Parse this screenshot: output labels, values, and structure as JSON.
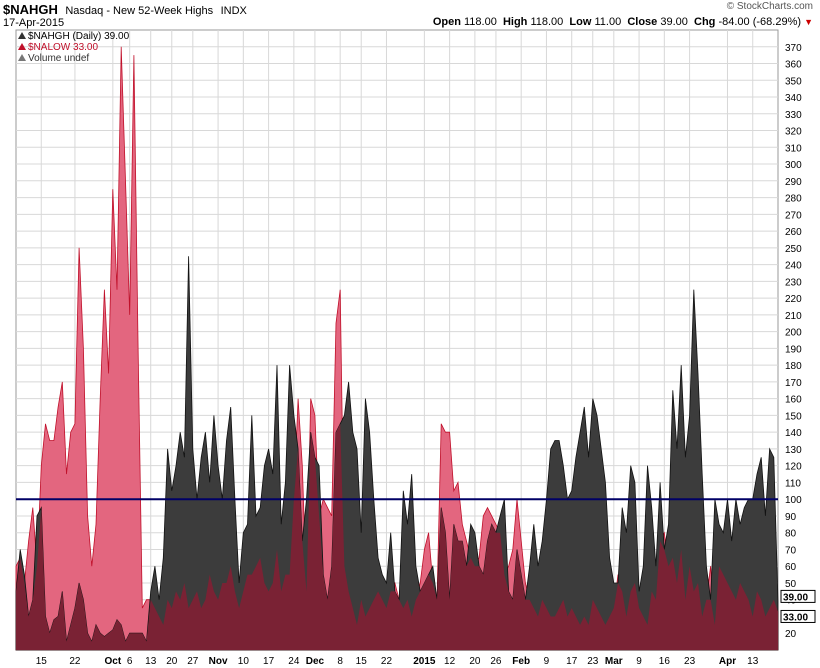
{
  "header": {
    "symbol": "$NAHGH",
    "name": "Nasdaq - New 52-Week Highs",
    "exchange": "INDX",
    "date": "17-Apr-2015",
    "brand": "© StockCharts.com",
    "open_label": "Open",
    "open": "118.00",
    "high_label": "High",
    "high": "118.00",
    "low_label": "Low",
    "low": "11.00",
    "close_label": "Close",
    "close": "39.00",
    "chg_label": "Chg",
    "chg": "-84.00 (-68.29%)"
  },
  "legend": {
    "items": [
      {
        "label": "$NAHGH (Daily) 39.00",
        "color": "#333333"
      },
      {
        "label": "$NALOW 33.00",
        "color": "#c0102a"
      },
      {
        "label": "Volume undef",
        "color": "#777777"
      }
    ]
  },
  "colors": {
    "highs_fill": "#3c3c3c",
    "lows_fill": "#e3667f",
    "overlap_fill": "#7a2234",
    "grid": "#d8d8d8",
    "reference_line": "#000066"
  },
  "chart_data": {
    "type": "area",
    "series": [
      {
        "name": "$NAHGH",
        "last_value": 39.0,
        "values": [
          45,
          70,
          55,
          30,
          40,
          90,
          95,
          30,
          20,
          28,
          30,
          45,
          15,
          25,
          35,
          50,
          40,
          20,
          15,
          25,
          20,
          18,
          20,
          22,
          28,
          25,
          15,
          20,
          20,
          20,
          20,
          15,
          45,
          60,
          40,
          65,
          130,
          105,
          120,
          140,
          125,
          245,
          130,
          100,
          125,
          140,
          110,
          150,
          120,
          100,
          135,
          155,
          100,
          50,
          80,
          85,
          150,
          90,
          95,
          120,
          130,
          115,
          180,
          85,
          110,
          180,
          150,
          130,
          75,
          100,
          140,
          125,
          120,
          55,
          40,
          60,
          140,
          145,
          150,
          170,
          140,
          130,
          80,
          160,
          140,
          100,
          65,
          55,
          50,
          80,
          45,
          40,
          105,
          85,
          115,
          60,
          45,
          50,
          55,
          60,
          40,
          95,
          80,
          40,
          85,
          75,
          75,
          60,
          85,
          80,
          60,
          55,
          75,
          85,
          80,
          90,
          100,
          45,
          40,
          70,
          55,
          40,
          60,
          85,
          60,
          75,
          100,
          130,
          135,
          135,
          120,
          100,
          105,
          125,
          140,
          155,
          125,
          160,
          150,
          130,
          110,
          65,
          50,
          50,
          95,
          80,
          120,
          110,
          45,
          60,
          120,
          95,
          60,
          110,
          70,
          85,
          165,
          130,
          180,
          125,
          150,
          225,
          175,
          115,
          60,
          40,
          100,
          85,
          80,
          100,
          75,
          100,
          85,
          95,
          100,
          100,
          115,
          125,
          90,
          130,
          125,
          39
        ]
      },
      {
        "name": "$NALOW",
        "last_value": 33.0,
        "values": [
          60,
          65,
          50,
          75,
          95,
          60,
          120,
          145,
          135,
          135,
          155,
          170,
          115,
          140,
          145,
          250,
          190,
          90,
          60,
          85,
          160,
          225,
          175,
          285,
          225,
          370,
          290,
          210,
          365,
          190,
          35,
          40,
          40,
          35,
          30,
          25,
          40,
          35,
          45,
          40,
          50,
          35,
          40,
          45,
          35,
          40,
          55,
          45,
          40,
          50,
          50,
          60,
          45,
          35,
          45,
          55,
          55,
          60,
          65,
          50,
          45,
          50,
          70,
          45,
          55,
          55,
          100,
          160,
          120,
          45,
          160,
          150,
          90,
          100,
          95,
          90,
          205,
          225,
          60,
          45,
          35,
          25,
          40,
          30,
          35,
          40,
          45,
          40,
          35,
          45,
          50,
          40,
          35,
          40,
          30,
          40,
          50,
          70,
          80,
          50,
          40,
          145,
          140,
          140,
          105,
          110,
          85,
          75,
          65,
          60,
          65,
          90,
          95,
          90,
          85,
          80,
          55,
          60,
          70,
          100,
          75,
          50,
          40,
          35,
          30,
          40,
          35,
          30,
          30,
          35,
          40,
          30,
          35,
          30,
          25,
          30,
          25,
          40,
          35,
          30,
          25,
          30,
          35,
          55,
          45,
          30,
          45,
          50,
          35,
          30,
          25,
          45,
          40,
          75,
          80,
          60,
          65,
          50,
          70,
          40,
          60,
          45,
          50,
          30,
          40,
          60,
          25,
          60,
          55,
          50,
          45,
          40,
          50,
          45,
          40,
          30,
          45,
          40,
          30,
          35,
          40,
          33
        ]
      }
    ],
    "reference_line": 100,
    "ylim": [
      10,
      380
    ],
    "y_ticks": [
      20,
      30,
      40,
      50,
      60,
      70,
      80,
      90,
      100,
      110,
      120,
      130,
      140,
      150,
      160,
      170,
      180,
      190,
      200,
      210,
      220,
      230,
      240,
      250,
      260,
      270,
      280,
      290,
      300,
      310,
      320,
      330,
      340,
      350,
      360,
      370
    ],
    "x_ticks": [
      {
        "label": "15",
        "index": 6,
        "bold": false
      },
      {
        "label": "22",
        "index": 14,
        "bold": false
      },
      {
        "label": "Oct",
        "index": 23,
        "bold": true
      },
      {
        "label": "6",
        "index": 27,
        "bold": false
      },
      {
        "label": "13",
        "index": 32,
        "bold": false
      },
      {
        "label": "20",
        "index": 37,
        "bold": false
      },
      {
        "label": "27",
        "index": 42,
        "bold": false
      },
      {
        "label": "Nov",
        "index": 48,
        "bold": true
      },
      {
        "label": "10",
        "index": 54,
        "bold": false
      },
      {
        "label": "17",
        "index": 60,
        "bold": false
      },
      {
        "label": "24",
        "index": 66,
        "bold": false
      },
      {
        "label": "Dec",
        "index": 71,
        "bold": true
      },
      {
        "label": "8",
        "index": 77,
        "bold": false
      },
      {
        "label": "15",
        "index": 82,
        "bold": false
      },
      {
        "label": "22",
        "index": 88,
        "bold": false
      },
      {
        "label": "2015",
        "index": 97,
        "bold": true
      },
      {
        "label": "12",
        "index": 103,
        "bold": false
      },
      {
        "label": "20",
        "index": 109,
        "bold": false
      },
      {
        "label": "26",
        "index": 114,
        "bold": false
      },
      {
        "label": "Feb",
        "index": 120,
        "bold": true
      },
      {
        "label": "9",
        "index": 126,
        "bold": false
      },
      {
        "label": "17",
        "index": 132,
        "bold": false
      },
      {
        "label": "23",
        "index": 137,
        "bold": false
      },
      {
        "label": "Mar",
        "index": 142,
        "bold": true
      },
      {
        "label": "9",
        "index": 148,
        "bold": false
      },
      {
        "label": "16",
        "index": 154,
        "bold": false
      },
      {
        "label": "23",
        "index": 160,
        "bold": false
      },
      {
        "label": "Apr",
        "index": 169,
        "bold": true
      },
      {
        "label": "13",
        "index": 175,
        "bold": false
      }
    ],
    "end_labels": [
      "39.00",
      "33.00"
    ],
    "grid": true
  }
}
